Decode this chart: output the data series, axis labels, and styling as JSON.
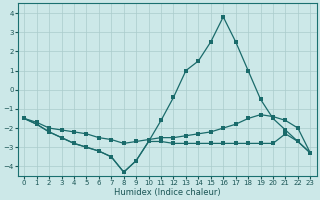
{
  "title": "",
  "xlabel": "Humidex (Indice chaleur)",
  "xlim": [
    -0.5,
    23.5
  ],
  "ylim": [
    -4.5,
    4.5
  ],
  "yticks": [
    -4,
    -3,
    -2,
    -1,
    0,
    1,
    2,
    3,
    4
  ],
  "xticks": [
    0,
    1,
    2,
    3,
    4,
    5,
    6,
    7,
    8,
    9,
    10,
    11,
    12,
    13,
    14,
    15,
    16,
    17,
    18,
    19,
    20,
    21,
    22,
    23
  ],
  "background_color": "#cce8e8",
  "grid_color": "#aacccc",
  "line_color": "#1a6b6b",
  "line1_y": [
    -1.5,
    -1.8,
    -2.2,
    -2.5,
    -2.8,
    -3.0,
    -3.2,
    -3.5,
    -4.3,
    -3.7,
    -2.7,
    -1.6,
    -0.4,
    1.0,
    1.5,
    2.5,
    3.8,
    2.5,
    1.0,
    -0.5,
    -1.5,
    -2.1,
    -2.7,
    -3.3
  ],
  "line2_y": [
    -1.5,
    -1.8,
    -2.2,
    -2.5,
    -2.8,
    -3.0,
    -3.2,
    -3.5,
    -4.3,
    -3.7,
    -2.7,
    -2.7,
    -2.8,
    -2.8,
    -2.8,
    -2.8,
    -2.8,
    -2.8,
    -2.8,
    -2.8,
    -2.8,
    -2.3,
    -2.7,
    -3.3
  ],
  "line3_y": [
    -1.5,
    -1.7,
    -2.0,
    -2.1,
    -2.2,
    -2.3,
    -2.5,
    -2.6,
    -2.8,
    -2.7,
    -2.6,
    -2.5,
    -2.5,
    -2.4,
    -2.3,
    -2.2,
    -2.0,
    -1.8,
    -1.5,
    -1.3,
    -1.4,
    -1.6,
    -2.0,
    -3.3
  ]
}
